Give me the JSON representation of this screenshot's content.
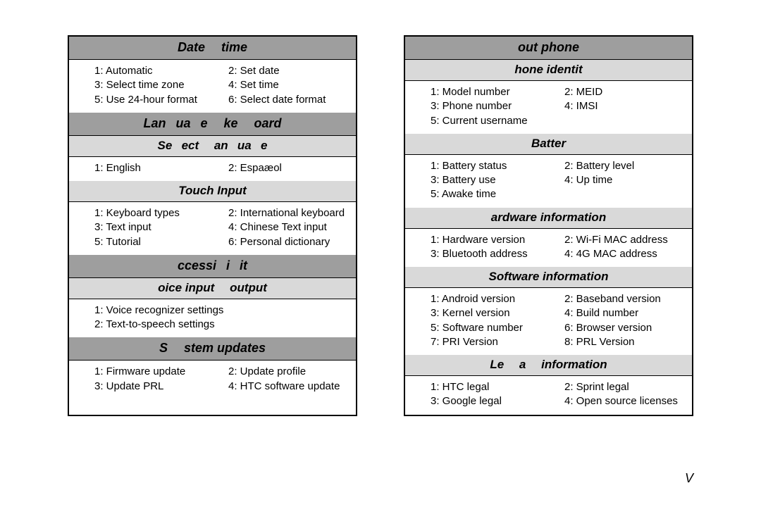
{
  "left": {
    "sections": [
      {
        "type": "major",
        "title": "Date   time",
        "items": [
          [
            "1: Automatic",
            "2: Set date"
          ],
          [
            "3: Select time zone",
            "4: Set time"
          ],
          [
            "5: Use 24-hour format",
            "6: Select date format"
          ]
        ]
      },
      {
        "type": "major",
        "title": "Lan  ua  e   ke   oard",
        "items": []
      },
      {
        "type": "sub",
        "title": "Se  ect   an  ua  e",
        "items": [
          [
            "1: English",
            "2: Espaæol"
          ]
        ]
      },
      {
        "type": "sub",
        "title": "Touch Input",
        "items": [
          [
            "1: Keyboard types",
            "2: International keyboard"
          ],
          [
            "3: Text input",
            "4: Chinese Text input"
          ],
          [
            "5: Tutorial",
            "6: Personal dictionary"
          ]
        ]
      },
      {
        "type": "major",
        "title": "ccessi  i  it",
        "items": []
      },
      {
        "type": "sub",
        "title": "oice input   output",
        "items": [
          [
            "1: Voice recognizer settings",
            ""
          ],
          [
            "2: Text-to-speech settings",
            ""
          ]
        ]
      },
      {
        "type": "major",
        "title": "S   stem updates",
        "items": [
          [
            "1: Firmware update",
            "2: Update profile"
          ],
          [
            "3: Update PRL",
            "4: HTC software update"
          ]
        ]
      }
    ]
  },
  "right": {
    "sections": [
      {
        "type": "major",
        "title": "out phone",
        "items": []
      },
      {
        "type": "sub",
        "title": "hone identit",
        "items": [
          [
            "1: Model number",
            "2: MEID"
          ],
          [
            "3: Phone number",
            "4: IMSI"
          ],
          [
            "5: Current username",
            ""
          ]
        ]
      },
      {
        "type": "sub",
        "title": "Batter",
        "items": [
          [
            "1: Battery status",
            "2: Battery level"
          ],
          [
            "3: Battery use",
            "4: Up time"
          ],
          [
            "5: Awake time",
            ""
          ]
        ]
      },
      {
        "type": "sub",
        "title": "ardware information",
        "items": [
          [
            "1: Hardware version",
            "2: Wi-Fi MAC address"
          ],
          [
            "3: Bluetooth address",
            "4: 4G MAC address"
          ]
        ]
      },
      {
        "type": "sub",
        "title": "Software information",
        "items": [
          [
            "1: Android version",
            "2: Baseband version"
          ],
          [
            "3: Kernel version",
            "4: Build number"
          ],
          [
            "5: Software number",
            "6: Browser version"
          ],
          [
            "7: PRI Version",
            " 8: PRL Version"
          ]
        ]
      },
      {
        "type": "sub",
        "title": "Le   a   information",
        "items": [
          [
            "1: HTC legal",
            "2: Sprint legal"
          ],
          [
            "3: Google legal",
            "4: Open source licenses"
          ]
        ]
      }
    ]
  },
  "footer": "V"
}
